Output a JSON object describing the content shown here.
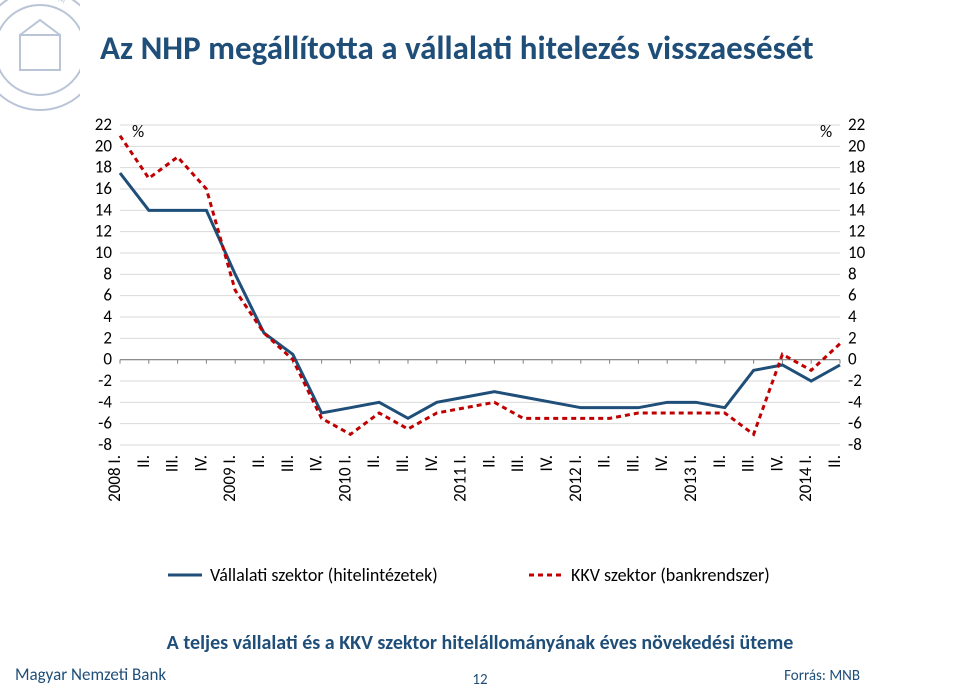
{
  "title": "Az NHP megállította a vállalati hitelezés visszaesését",
  "subtitle": "A teljes vállalati és a KKV szektor hitelállományának éves növekedési üteme",
  "footer_left": "Magyar Nemzeti Bank",
  "footer_right": "Forrás: MNB",
  "page_number": "12",
  "chart": {
    "type": "line",
    "y_axis": {
      "label_left": "%",
      "label_right": "%",
      "min": -8,
      "max": 22,
      "step": 2,
      "label_fontsize": 17,
      "tick_fontsize": 17
    },
    "x_axis": {
      "years": [
        "2008 I.",
        "2009 I.",
        "2010 I.",
        "2011 I.",
        "2012 I.",
        "2013 I.",
        "2014 I."
      ],
      "quarters": [
        "II.",
        "III.",
        "IV."
      ],
      "tick_fontsize": 17
    },
    "grid_color": "#d9d9d9",
    "background_color": "#ffffff",
    "categories": [
      "2008 I.",
      "II.",
      "III.",
      "IV.",
      "2009 I.",
      "II.",
      "III.",
      "IV.",
      "2010 I.",
      "II.",
      "III.",
      "IV.",
      "2011 I.",
      "II.",
      "III.",
      "IV.",
      "2012 I.",
      "II.",
      "III.",
      "IV.",
      "2013 I.",
      "II.",
      "III.",
      "IV.",
      "2014 I.",
      "II."
    ],
    "series": [
      {
        "name": "Vállalati szektor (hitelintézetek)",
        "color": "#1f4e79",
        "dash": "solid",
        "width": 3,
        "data": [
          17.5,
          14.0,
          14.0,
          14.0,
          8.0,
          2.5,
          0.5,
          -5.0,
          -4.5,
          -4.0,
          -5.5,
          -4.0,
          -3.5,
          -3.0,
          -3.5,
          -4.0,
          -4.5,
          -4.5,
          -4.5,
          -4.0,
          -4.0,
          -4.5,
          -1.0,
          -0.5,
          -2.0,
          -0.5
        ]
      },
      {
        "name": "KKV szektor (bankrendszer)",
        "color": "#c00000",
        "dash": "5,4",
        "width": 3,
        "data": [
          21.0,
          17.0,
          19.0,
          16.0,
          6.5,
          2.5,
          0.0,
          -5.5,
          -7.0,
          -5.0,
          -6.5,
          -5.0,
          -4.5,
          -4.0,
          -5.5,
          -5.5,
          -5.5,
          -5.5,
          -5.0,
          -5.0,
          -5.0,
          -5.0,
          -7.0,
          0.5,
          -1.0,
          1.5
        ]
      }
    ],
    "legend": {
      "fontsize": 18,
      "position": "bottom"
    }
  }
}
